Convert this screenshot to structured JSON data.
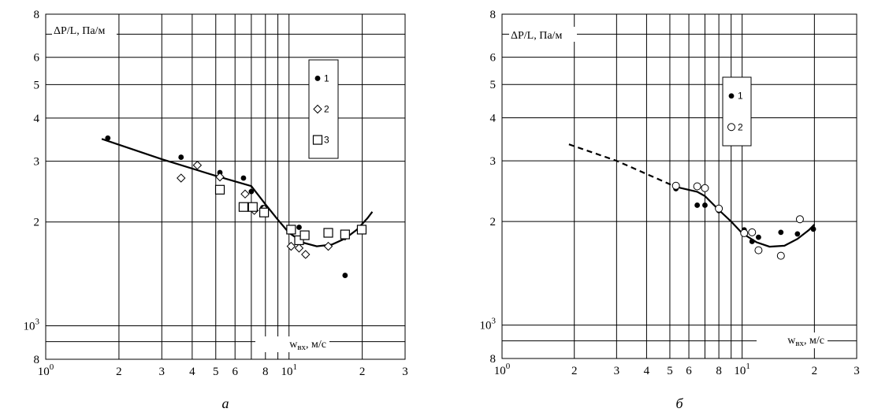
{
  "chart_data": [
    {
      "type": "scatter",
      "panel_label": "а",
      "ylabel": "ΔP/L, Па/м",
      "xlabel": "w_вх, м/с",
      "x_scale": "log",
      "y_scale": "log",
      "xlim": [
        1,
        30
      ],
      "ylim": [
        800,
        8000
      ],
      "x_ticks": [
        {
          "v": 1,
          "t": "10",
          "sup": "0"
        },
        {
          "v": 2,
          "t": "2"
        },
        {
          "v": 3,
          "t": "3"
        },
        {
          "v": 4,
          "t": "4"
        },
        {
          "v": 5,
          "t": "5"
        },
        {
          "v": 6,
          "t": "6"
        },
        {
          "v": 8,
          "t": "8"
        },
        {
          "v": 10,
          "t": "10",
          "sup": "1"
        },
        {
          "v": 20,
          "t": "2"
        },
        {
          "v": 30,
          "t": "3"
        }
      ],
      "y_ticks": [
        {
          "v": 800,
          "t": "8"
        },
        {
          "v": 1000,
          "t": "10",
          "sup": "3"
        },
        {
          "v": 2000,
          "t": "2"
        },
        {
          "v": 3000,
          "t": "3"
        },
        {
          "v": 4000,
          "t": "4"
        },
        {
          "v": 5000,
          "t": "5"
        },
        {
          "v": 6000,
          "t": "6"
        },
        {
          "v": 8000,
          "t": "8"
        }
      ],
      "series": [
        {
          "name": "1",
          "marker": "filled-circle",
          "points": [
            [
              1.8,
              3500
            ],
            [
              3.6,
              3080
            ],
            [
              5.2,
              2780
            ],
            [
              6.5,
              2680
            ],
            [
              7,
              2450
            ],
            [
              7.8,
              2200
            ],
            [
              11,
              1930
            ],
            [
              11.7,
              1600
            ],
            [
              17,
              1400
            ]
          ]
        },
        {
          "name": "2",
          "marker": "diamond",
          "points": [
            [
              3.6,
              2680
            ],
            [
              4.2,
              2920
            ],
            [
              5.2,
              2700
            ],
            [
              6.6,
              2410
            ],
            [
              7.2,
              2160
            ],
            [
              7.9,
              2180
            ],
            [
              10.2,
              1700
            ],
            [
              11,
              1680
            ],
            [
              11.7,
              1610
            ],
            [
              14.5,
              1700
            ],
            [
              17,
              1820
            ]
          ]
        },
        {
          "name": "3",
          "marker": "square",
          "points": [
            [
              5.2,
              2480
            ],
            [
              6.5,
              2210
            ],
            [
              7.1,
              2210
            ],
            [
              7.9,
              2130
            ],
            [
              10.2,
              1900
            ],
            [
              11,
              1770
            ],
            [
              11.6,
              1830
            ],
            [
              14.5,
              1860
            ],
            [
              17,
              1840
            ],
            [
              19.9,
              1900
            ]
          ]
        }
      ],
      "fit_curve": {
        "style": "solid",
        "points": [
          [
            1.7,
            3480
          ],
          [
            3,
            3040
          ],
          [
            5,
            2720
          ],
          [
            7,
            2540
          ],
          [
            8,
            2250
          ],
          [
            9,
            2030
          ],
          [
            10,
            1860
          ],
          [
            11.5,
            1740
          ],
          [
            13,
            1700
          ],
          [
            15,
            1720
          ],
          [
            17,
            1790
          ],
          [
            19,
            1900
          ],
          [
            21,
            2050
          ],
          [
            22,
            2140
          ]
        ]
      }
    },
    {
      "type": "scatter",
      "panel_label": "б",
      "ylabel": "ΔP/L, Па/м",
      "xlabel": "w_вх, м/с",
      "x_scale": "log",
      "y_scale": "log",
      "xlim": [
        1,
        30
      ],
      "ylim": [
        800,
        8000
      ],
      "x_ticks": [
        {
          "v": 1,
          "t": "10",
          "sup": "0"
        },
        {
          "v": 2,
          "t": "2"
        },
        {
          "v": 3,
          "t": "3"
        },
        {
          "v": 4,
          "t": "4"
        },
        {
          "v": 5,
          "t": "5"
        },
        {
          "v": 6,
          "t": "6"
        },
        {
          "v": 8,
          "t": "8"
        },
        {
          "v": 10,
          "t": "10",
          "sup": "1"
        },
        {
          "v": 20,
          "t": "2"
        },
        {
          "v": 30,
          "t": "3"
        }
      ],
      "y_ticks": [
        {
          "v": 800,
          "t": "8"
        },
        {
          "v": 1000,
          "t": "10",
          "sup": "3"
        },
        {
          "v": 2000,
          "t": "2"
        },
        {
          "v": 3000,
          "t": "3"
        },
        {
          "v": 4000,
          "t": "4"
        },
        {
          "v": 5000,
          "t": "5"
        },
        {
          "v": 6000,
          "t": "6"
        },
        {
          "v": 8000,
          "t": "8"
        }
      ],
      "series": [
        {
          "name": "1",
          "marker": "filled-circle",
          "points": [
            [
              5.3,
              2490
            ],
            [
              6.5,
              2230
            ],
            [
              7,
              2230
            ],
            [
              8,
              2150
            ],
            [
              10.2,
              1890
            ],
            [
              11,
              1750
            ],
            [
              11.7,
              1800
            ],
            [
              14.5,
              1860
            ],
            [
              17,
              1840
            ],
            [
              19.8,
              1900
            ]
          ]
        },
        {
          "name": "2",
          "marker": "open-circle",
          "points": [
            [
              5.3,
              2540
            ],
            [
              6.5,
              2530
            ],
            [
              7,
              2500
            ],
            [
              8,
              2180
            ],
            [
              10.2,
              1850
            ],
            [
              11,
              1860
            ],
            [
              11.7,
              1650
            ],
            [
              14.5,
              1590
            ],
            [
              17.4,
              2030
            ]
          ]
        }
      ],
      "fit_curve_dashed": {
        "style": "dashed",
        "points": [
          [
            1.9,
            3350
          ],
          [
            3,
            3000
          ],
          [
            5.3,
            2520
          ]
        ]
      },
      "fit_curve": {
        "style": "solid",
        "points": [
          [
            5.3,
            2520
          ],
          [
            6.5,
            2440
          ],
          [
            7,
            2370
          ],
          [
            8,
            2160
          ],
          [
            9,
            2000
          ],
          [
            10,
            1850
          ],
          [
            11.5,
            1740
          ],
          [
            13,
            1690
          ],
          [
            15,
            1700
          ],
          [
            17,
            1780
          ],
          [
            19,
            1890
          ],
          [
            20,
            1960
          ]
        ]
      }
    }
  ]
}
